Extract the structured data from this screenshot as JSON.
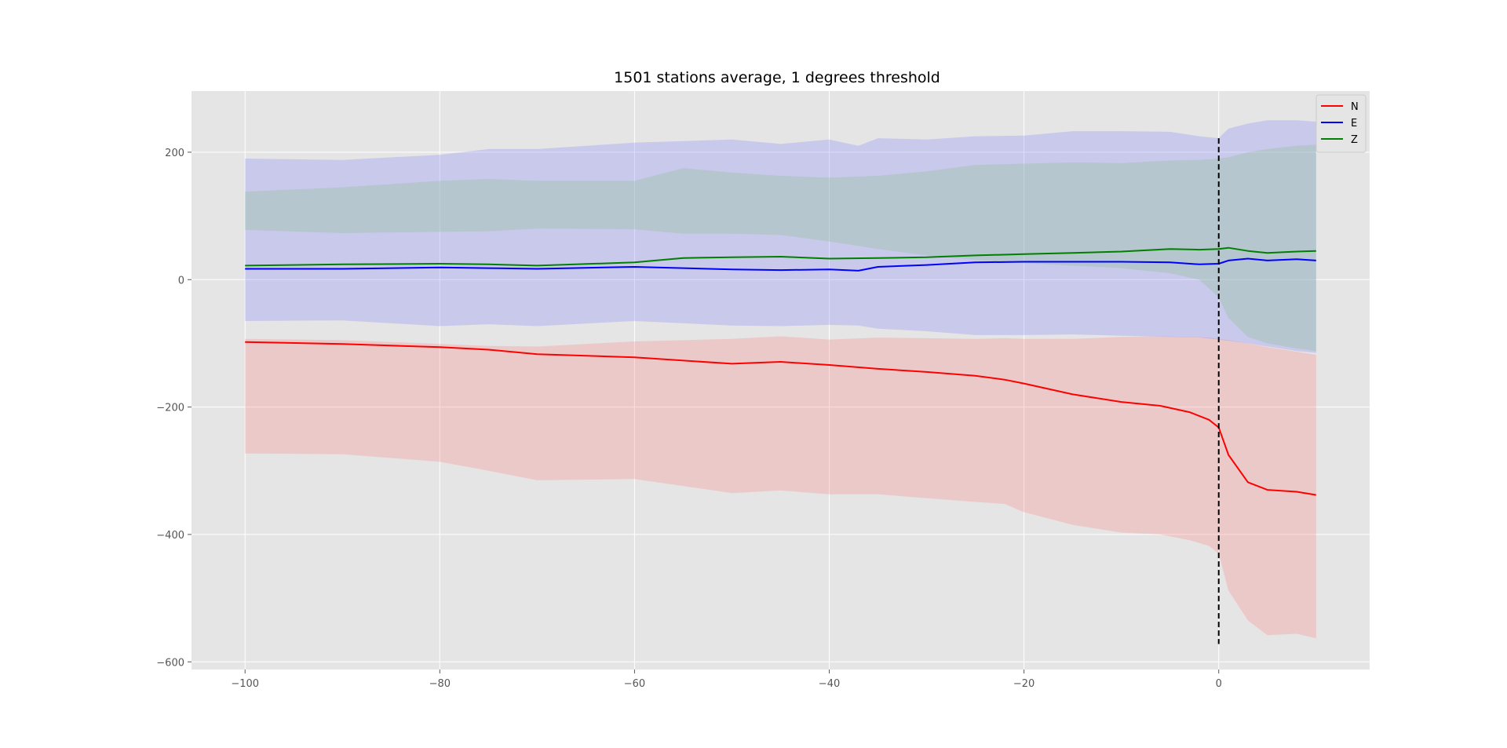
{
  "chart_data": {
    "type": "line",
    "title": "1501 stations average, 1 degrees threshold",
    "xlabel": "",
    "ylabel": "",
    "xlim": [
      -105.5,
      15.5
    ],
    "ylim": [
      -612,
      296
    ],
    "xticks": [
      -100,
      -80,
      -60,
      -40,
      -20,
      0
    ],
    "xtick_labels": [
      "−100",
      "−80",
      "−60",
      "−40",
      "−20",
      "0"
    ],
    "yticks": [
      -600,
      -400,
      -200,
      0,
      200
    ],
    "ytick_labels": [
      "−600",
      "−400",
      "−200",
      "0",
      "200"
    ],
    "grid": true,
    "legend_position": "top-right",
    "vline": {
      "x": 0,
      "y_range": [
        -572,
        222
      ],
      "style": "dashed",
      "color": "#000000"
    },
    "series": [
      {
        "name": "N",
        "color": "#ff0000",
        "band_color": "#ff8080",
        "x": [
          -100,
          -90,
          -80,
          -75,
          -70,
          -60,
          -50,
          -45,
          -40,
          -35,
          -30,
          -25,
          -22,
          -20,
          -15,
          -10,
          -6,
          -3,
          -1,
          0,
          1,
          3,
          5,
          8,
          10
        ],
        "y": [
          -98,
          -101,
          -106,
          -110,
          -117,
          -122,
          -132,
          -129,
          -134,
          -140,
          -145,
          -151,
          -157,
          -163,
          -180,
          -192,
          -198,
          -208,
          -220,
          -232,
          -275,
          -318,
          -330,
          -333,
          -338
        ],
        "upper": [
          -93,
          -95,
          -101,
          -104,
          -105,
          -97,
          -93,
          -89,
          -94,
          -91,
          -92,
          -93,
          -92,
          -93,
          -93,
          -90,
          -89,
          -90,
          -91,
          -93,
          -95,
          -100,
          -106,
          -113,
          -118
        ],
        "lower": [
          -273,
          -274,
          -286,
          -300,
          -315,
          -313,
          -335,
          -331,
          -337,
          -337,
          -343,
          -349,
          -352,
          -365,
          -385,
          -397,
          -400,
          -409,
          -418,
          -430,
          -488,
          -535,
          -558,
          -556,
          -563
        ]
      },
      {
        "name": "E",
        "color": "#0000ff",
        "band_color": "#8080ff",
        "x": [
          -100,
          -90,
          -80,
          -75,
          -70,
          -60,
          -50,
          -45,
          -40,
          -37,
          -35,
          -30,
          -25,
          -20,
          -15,
          -10,
          -5,
          -2,
          0,
          1,
          3,
          5,
          8,
          10
        ],
        "y": [
          17,
          17,
          19,
          18,
          17,
          20,
          16,
          15,
          16,
          14,
          20,
          23,
          27,
          28,
          28,
          28,
          27,
          24,
          25,
          30,
          33,
          30,
          32,
          30
        ],
        "upper": [
          190,
          188,
          196,
          205,
          205,
          215,
          220,
          213,
          220,
          210,
          222,
          220,
          225,
          226,
          233,
          233,
          232,
          225,
          222,
          237,
          245,
          250,
          250,
          248
        ],
        "lower": [
          -65,
          -64,
          -73,
          -70,
          -73,
          -65,
          -72,
          -73,
          -71,
          -72,
          -77,
          -81,
          -87,
          -87,
          -86,
          -88,
          -90,
          -91,
          -94,
          -96,
          -100,
          -105,
          -112,
          -115
        ]
      },
      {
        "name": "Z",
        "color": "#008000",
        "band_color": "#80c080",
        "x": [
          -100,
          -90,
          -80,
          -75,
          -70,
          -60,
          -55,
          -50,
          -45,
          -40,
          -35,
          -30,
          -25,
          -20,
          -15,
          -10,
          -5,
          -2,
          0,
          1,
          3,
          5,
          8,
          10
        ],
        "y": [
          22,
          24,
          25,
          24,
          22,
          27,
          34,
          35,
          36,
          33,
          34,
          35,
          38,
          40,
          42,
          44,
          48,
          47,
          48,
          50,
          45,
          42,
          44,
          45
        ],
        "upper": [
          138,
          145,
          155,
          158,
          155,
          155,
          175,
          168,
          163,
          160,
          163,
          170,
          180,
          182,
          184,
          183,
          187,
          188,
          190,
          192,
          200,
          205,
          210,
          212
        ],
        "lower": [
          78,
          73,
          75,
          76,
          80,
          79,
          72,
          72,
          70,
          60,
          48,
          38,
          31,
          26,
          22,
          18,
          10,
          0,
          -28,
          -60,
          -90,
          -100,
          -108,
          -112
        ]
      }
    ]
  }
}
